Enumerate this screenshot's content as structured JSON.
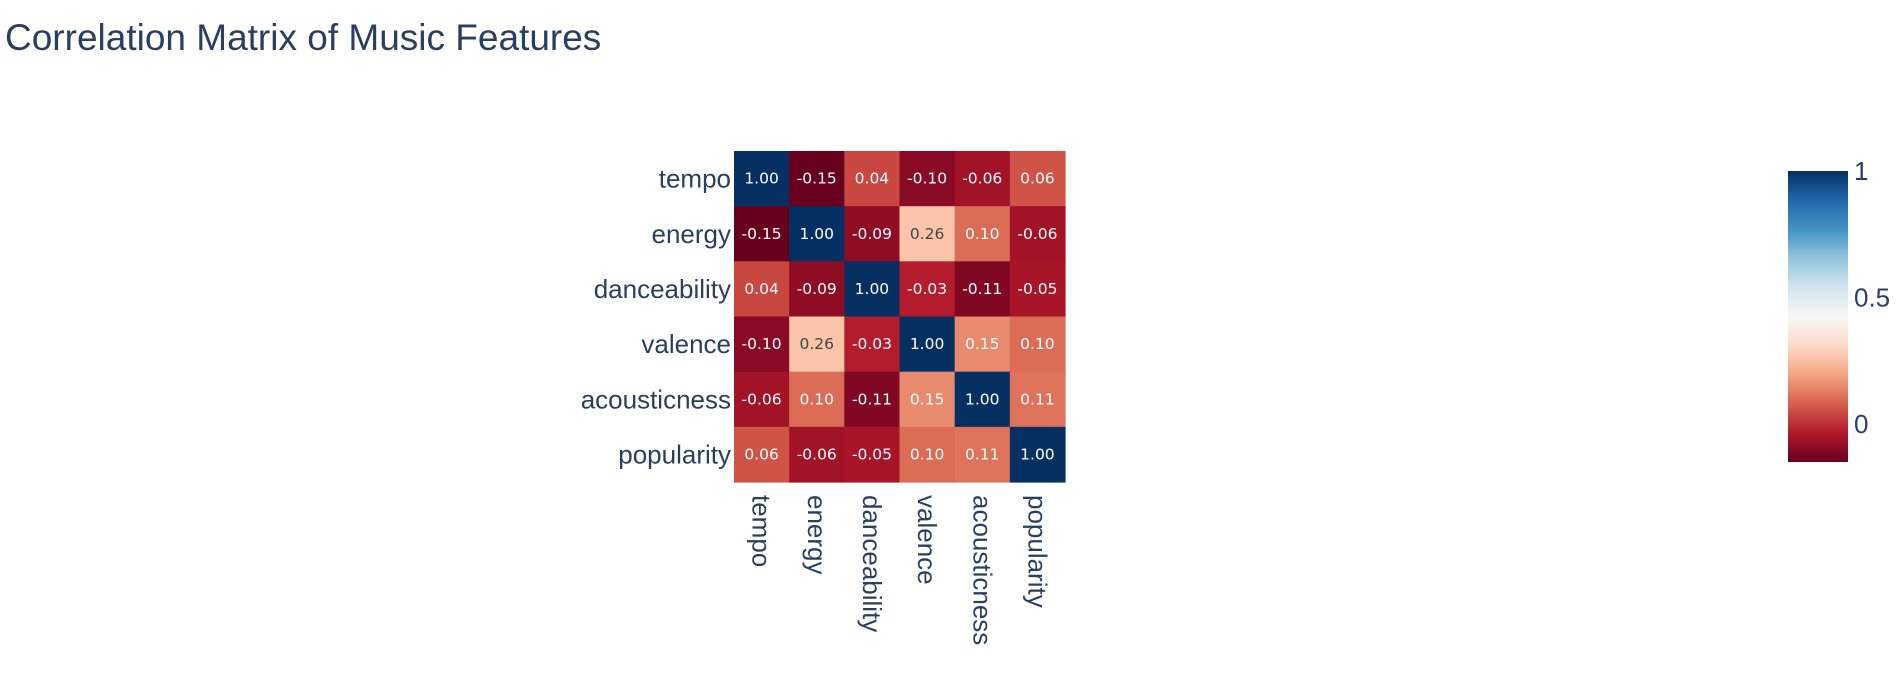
{
  "chart_data": {
    "type": "heatmap",
    "title": "Correlation Matrix of Music Features",
    "x_categories": [
      "tempo",
      "energy",
      "danceability",
      "valence",
      "acousticness",
      "popularity"
    ],
    "y_categories": [
      "tempo",
      "energy",
      "danceability",
      "valence",
      "acousticness",
      "popularity"
    ],
    "z": [
      [
        1.0,
        -0.15,
        0.04,
        -0.1,
        -0.06,
        0.06
      ],
      [
        -0.15,
        1.0,
        -0.09,
        0.26,
        0.1,
        -0.06
      ],
      [
        0.04,
        -0.09,
        1.0,
        -0.03,
        -0.11,
        -0.05
      ],
      [
        -0.1,
        0.26,
        -0.03,
        1.0,
        0.15,
        0.1
      ],
      [
        -0.06,
        0.1,
        -0.11,
        0.15,
        1.0,
        0.11
      ],
      [
        0.06,
        -0.06,
        -0.05,
        0.1,
        0.11,
        1.0
      ]
    ],
    "zrange": [
      -0.15,
      1.0
    ],
    "colorscale": "RdBu",
    "colorbar": {
      "ticks": [
        0,
        0.5,
        1
      ],
      "tick_labels": [
        "0",
        "0.5",
        "1"
      ]
    },
    "colors": {
      "text_dark_cells": "#ffffff",
      "text_light_cells": "#444444",
      "axis_text": "#2a3f5f"
    }
  }
}
